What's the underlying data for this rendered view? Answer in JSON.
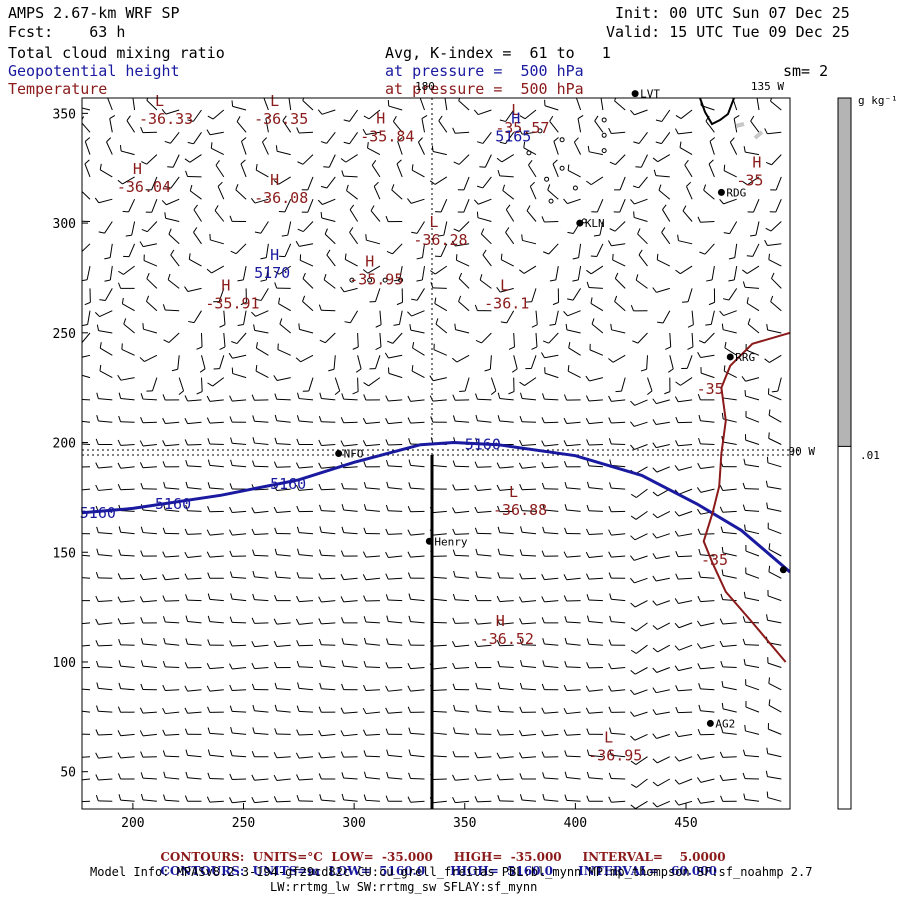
{
  "header": {
    "title": "AMPS 2.67-km WRF SP",
    "forecast": "Fcst:    63 h",
    "init": "Init: 00 UTC Sun 07 Dec 25",
    "valid": "Valid: 15 UTC Tue 09 Dec 25",
    "field1": "Total cloud mixing ratio",
    "field2": "Geopotential height",
    "field3": "Temperature",
    "avg": "Avg, K-index =  61 to   1",
    "pressure1": "at pressure =  500 hPa",
    "pressure2": "at pressure =  500 hPa",
    "sm": "sm= 2"
  },
  "colors": {
    "height": "#1a1aa0",
    "temperature": "#8b1a1a",
    "barb": "#000000"
  },
  "map": {
    "x_range": [
      177,
      497
    ],
    "y_range": [
      33,
      357
    ],
    "x_ticks": [
      "200",
      "250",
      "300",
      "350",
      "400",
      "450"
    ],
    "y_ticks": [
      "50",
      "100",
      "150",
      "200",
      "250",
      "300",
      "350"
    ],
    "lon_labels": [
      "180",
      "135 W",
      "90 W"
    ],
    "stations": [
      {
        "name": "LVT",
        "x": 427,
        "y": 359
      },
      {
        "name": "RDG",
        "x": 466,
        "y": 314
      },
      {
        "name": "KLN",
        "x": 402,
        "y": 300
      },
      {
        "name": "RRG",
        "x": 470,
        "y": 239
      },
      {
        "name": "NFO",
        "x": 293,
        "y": 195
      },
      {
        "name": "Henry",
        "x": 334,
        "y": 155
      },
      {
        "name": "AG2",
        "x": 461,
        "y": 72
      },
      {
        "name": "",
        "x": 494,
        "y": 142
      }
    ],
    "temp_extrema": [
      {
        "type": "L",
        "value": "-36.33",
        "x": 210,
        "y": 346
      },
      {
        "type": "L",
        "value": "-36.35",
        "x": 262,
        "y": 346
      },
      {
        "type": "H",
        "value": "-35.84",
        "x": 310,
        "y": 338
      },
      {
        "type": "L",
        "value": "-35.57",
        "x": 371,
        "y": 342
      },
      {
        "type": "H",
        "value": "-36.04",
        "x": 200,
        "y": 315
      },
      {
        "type": "H",
        "value": "-36.08",
        "x": 262,
        "y": 310
      },
      {
        "type": "L",
        "value": "-36.28",
        "x": 334,
        "y": 291
      },
      {
        "type": "H",
        "value": "-35.95",
        "x": 305,
        "y": 273
      },
      {
        "type": "H",
        "value": "-35.91",
        "x": 240,
        "y": 262
      },
      {
        "type": "L",
        "value": "-36.1",
        "x": 366,
        "y": 262
      },
      {
        "type": "H",
        "value": "-35",
        "x": 480,
        "y": 318
      },
      {
        "type": "",
        "value": "-35",
        "x": 462,
        "y": 223
      },
      {
        "type": "L",
        "value": "-36.88",
        "x": 370,
        "y": 168
      },
      {
        "type": "",
        "value": "-35",
        "x": 464,
        "y": 145
      },
      {
        "type": "H",
        "value": "-36.52",
        "x": 364,
        "y": 109
      },
      {
        "type": "L",
        "value": "-36.95",
        "x": 413,
        "y": 56
      }
    ],
    "height_extrema": [
      {
        "type": "H",
        "value": "5170",
        "x": 262,
        "y": 276
      },
      {
        "type": "H",
        "value": "5165",
        "x": 371,
        "y": 338
      }
    ],
    "height_contour_labels": [
      {
        "value": "5160",
        "x": 176,
        "y": 168
      },
      {
        "value": "5160",
        "x": 210,
        "y": 172
      },
      {
        "value": "5160",
        "x": 262,
        "y": 181
      },
      {
        "value": "5160",
        "x": 350,
        "y": 199
      }
    ],
    "height_contour": [
      [
        177,
        168
      ],
      [
        200,
        170
      ],
      [
        240,
        176
      ],
      [
        275,
        183
      ],
      [
        300,
        191
      ],
      [
        330,
        199
      ],
      [
        345,
        200
      ],
      [
        365,
        199
      ],
      [
        400,
        194
      ],
      [
        430,
        185
      ],
      [
        455,
        172
      ],
      [
        475,
        160
      ],
      [
        497,
        141
      ]
    ],
    "temp_contour": [
      [
        497,
        250
      ],
      [
        480,
        245
      ],
      [
        470,
        235
      ],
      [
        466,
        225
      ],
      [
        468,
        210
      ],
      [
        466,
        195
      ],
      [
        465,
        180
      ],
      [
        462,
        168
      ],
      [
        458,
        155
      ],
      [
        462,
        145
      ],
      [
        468,
        132
      ],
      [
        480,
        118
      ],
      [
        495,
        100
      ]
    ],
    "cloud_points": [
      [
        384,
        342
      ],
      [
        379,
        332
      ],
      [
        394,
        338
      ],
      [
        394,
        325
      ],
      [
        387,
        320
      ],
      [
        389,
        310
      ],
      [
        400,
        316
      ],
      [
        404,
        301
      ],
      [
        299,
        274
      ],
      [
        307,
        274
      ],
      [
        314,
        274
      ],
      [
        321,
        274
      ],
      [
        413,
        347
      ],
      [
        413,
        340
      ],
      [
        413,
        333
      ]
    ]
  },
  "colorbar": {
    "unit": "g kg⁻¹",
    "level": ".01",
    "fill_fraction": 0.49
  },
  "footer": {
    "line1_label": "CONTOURS:",
    "line1_units": "UNITS=°C",
    "line1_low": "LOW=  -35.000",
    "line1_high": "HIGH=  -35.000",
    "line1_interval": "INTERVAL=    5.0000",
    "line2_label": "CONTOURS:",
    "line2_units": "UNITS=m",
    "line2_low": "LOW=  5160.0",
    "line2_high": "HIGH=  5160.0",
    "line2_interval": "INTERVAL=   60.000",
    "model_info": "Model Info: MPASv8.2.3-194-gf29cd82c CU:cu_grell_freitas PBL:bl_mynn MP:mp_thompson SF:sf_noahmp 2.7",
    "model_info2": "LW:rrtmg_lw SW:rrtmg_sw SFLAY:sf_mynn"
  }
}
